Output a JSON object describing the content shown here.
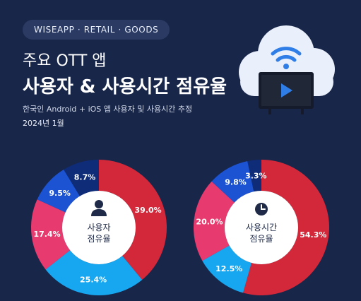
{
  "header": {
    "brand": "WISEAPP · RETAIL · GOODS",
    "title_line1": "주요 OTT 앱",
    "title_line2": "사용자 & 사용시간 점유율",
    "subtitle": "한국인 Android + iOS 앱 사용자 및 사용시간 추정",
    "date": "2024년 1월"
  },
  "icons": {
    "hero": "cloud-tv-wifi-icon",
    "users_center": "person-icon",
    "time_center": "clock-icon"
  },
  "colors": {
    "background": "#18264a",
    "red": "#d3283a",
    "sky": "#17a6f0",
    "pink": "#e73a6e",
    "blue": "#1c53d2",
    "navy": "#0f2c78",
    "center": "#ffffff"
  },
  "chart_data": [
    {
      "type": "pie",
      "variant": "donut",
      "center_label": [
        "사용자",
        "점유율"
      ],
      "values": [
        39.0,
        25.4,
        17.4,
        9.5,
        8.7
      ],
      "labels": [
        "39.0%",
        "25.4%",
        "17.4%",
        "9.5%",
        "8.7%"
      ],
      "colors": [
        "#d3283a",
        "#17a6f0",
        "#e73a6e",
        "#1c53d2",
        "#0f2c78"
      ]
    },
    {
      "type": "pie",
      "variant": "donut",
      "center_label": [
        "사용시간",
        "점유율"
      ],
      "values": [
        54.3,
        12.5,
        20.0,
        9.8,
        3.3
      ],
      "labels": [
        "54.3%",
        "12.5%",
        "20.0%",
        "9.8%",
        "3.3%"
      ],
      "colors": [
        "#d3283a",
        "#17a6f0",
        "#e73a6e",
        "#1c53d2",
        "#0f2c78"
      ]
    }
  ]
}
